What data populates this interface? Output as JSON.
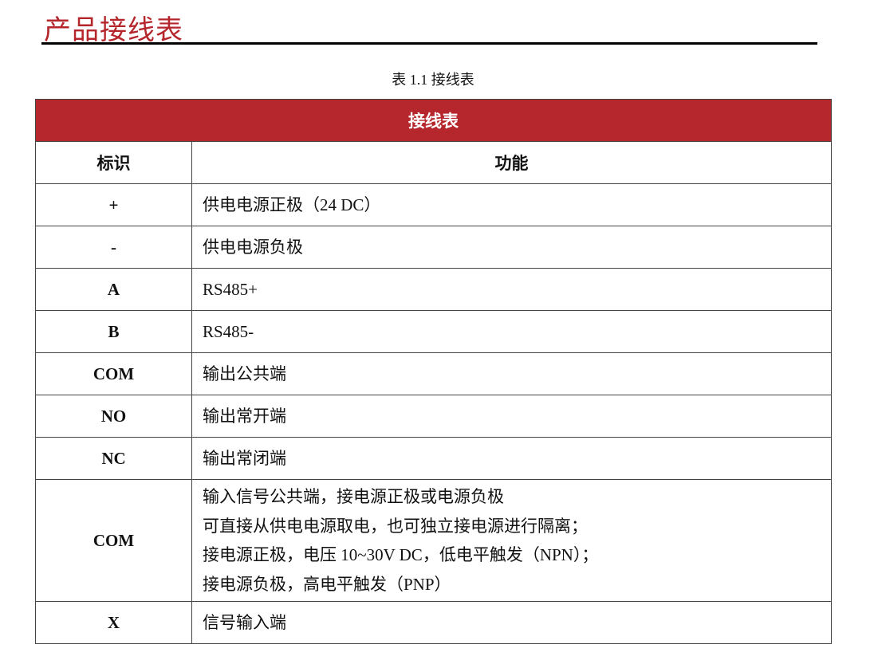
{
  "section_title": "产品接线表",
  "caption": "表 1.1  接线表",
  "table": {
    "title": "接线表",
    "headers": [
      "标识",
      "功能"
    ],
    "rows": [
      {
        "id": "+",
        "lines": [
          "供电电源正极（24 DC）"
        ]
      },
      {
        "id": "-",
        "lines": [
          "供电电源负极"
        ]
      },
      {
        "id": "A",
        "lines": [
          "RS485+"
        ]
      },
      {
        "id": "B",
        "lines": [
          "RS485-"
        ]
      },
      {
        "id": "COM",
        "lines": [
          "输出公共端"
        ]
      },
      {
        "id": "NO",
        "lines": [
          "输出常开端"
        ]
      },
      {
        "id": "NC",
        "lines": [
          "输出常闭端"
        ]
      },
      {
        "id": "COM",
        "lines": [
          "输入信号公共端，接电源正极或电源负极",
          "可直接从供电电源取电，也可独立接电源进行隔离；",
          "接电源正极，电压 10~30V DC，低电平触发（NPN）；",
          "接电源负极，高电平触发（PNP）"
        ]
      },
      {
        "id": "X",
        "lines": [
          "信号输入端"
        ]
      }
    ]
  },
  "colors": {
    "accent": "#b5262c",
    "header_bg": "#b5272d"
  }
}
